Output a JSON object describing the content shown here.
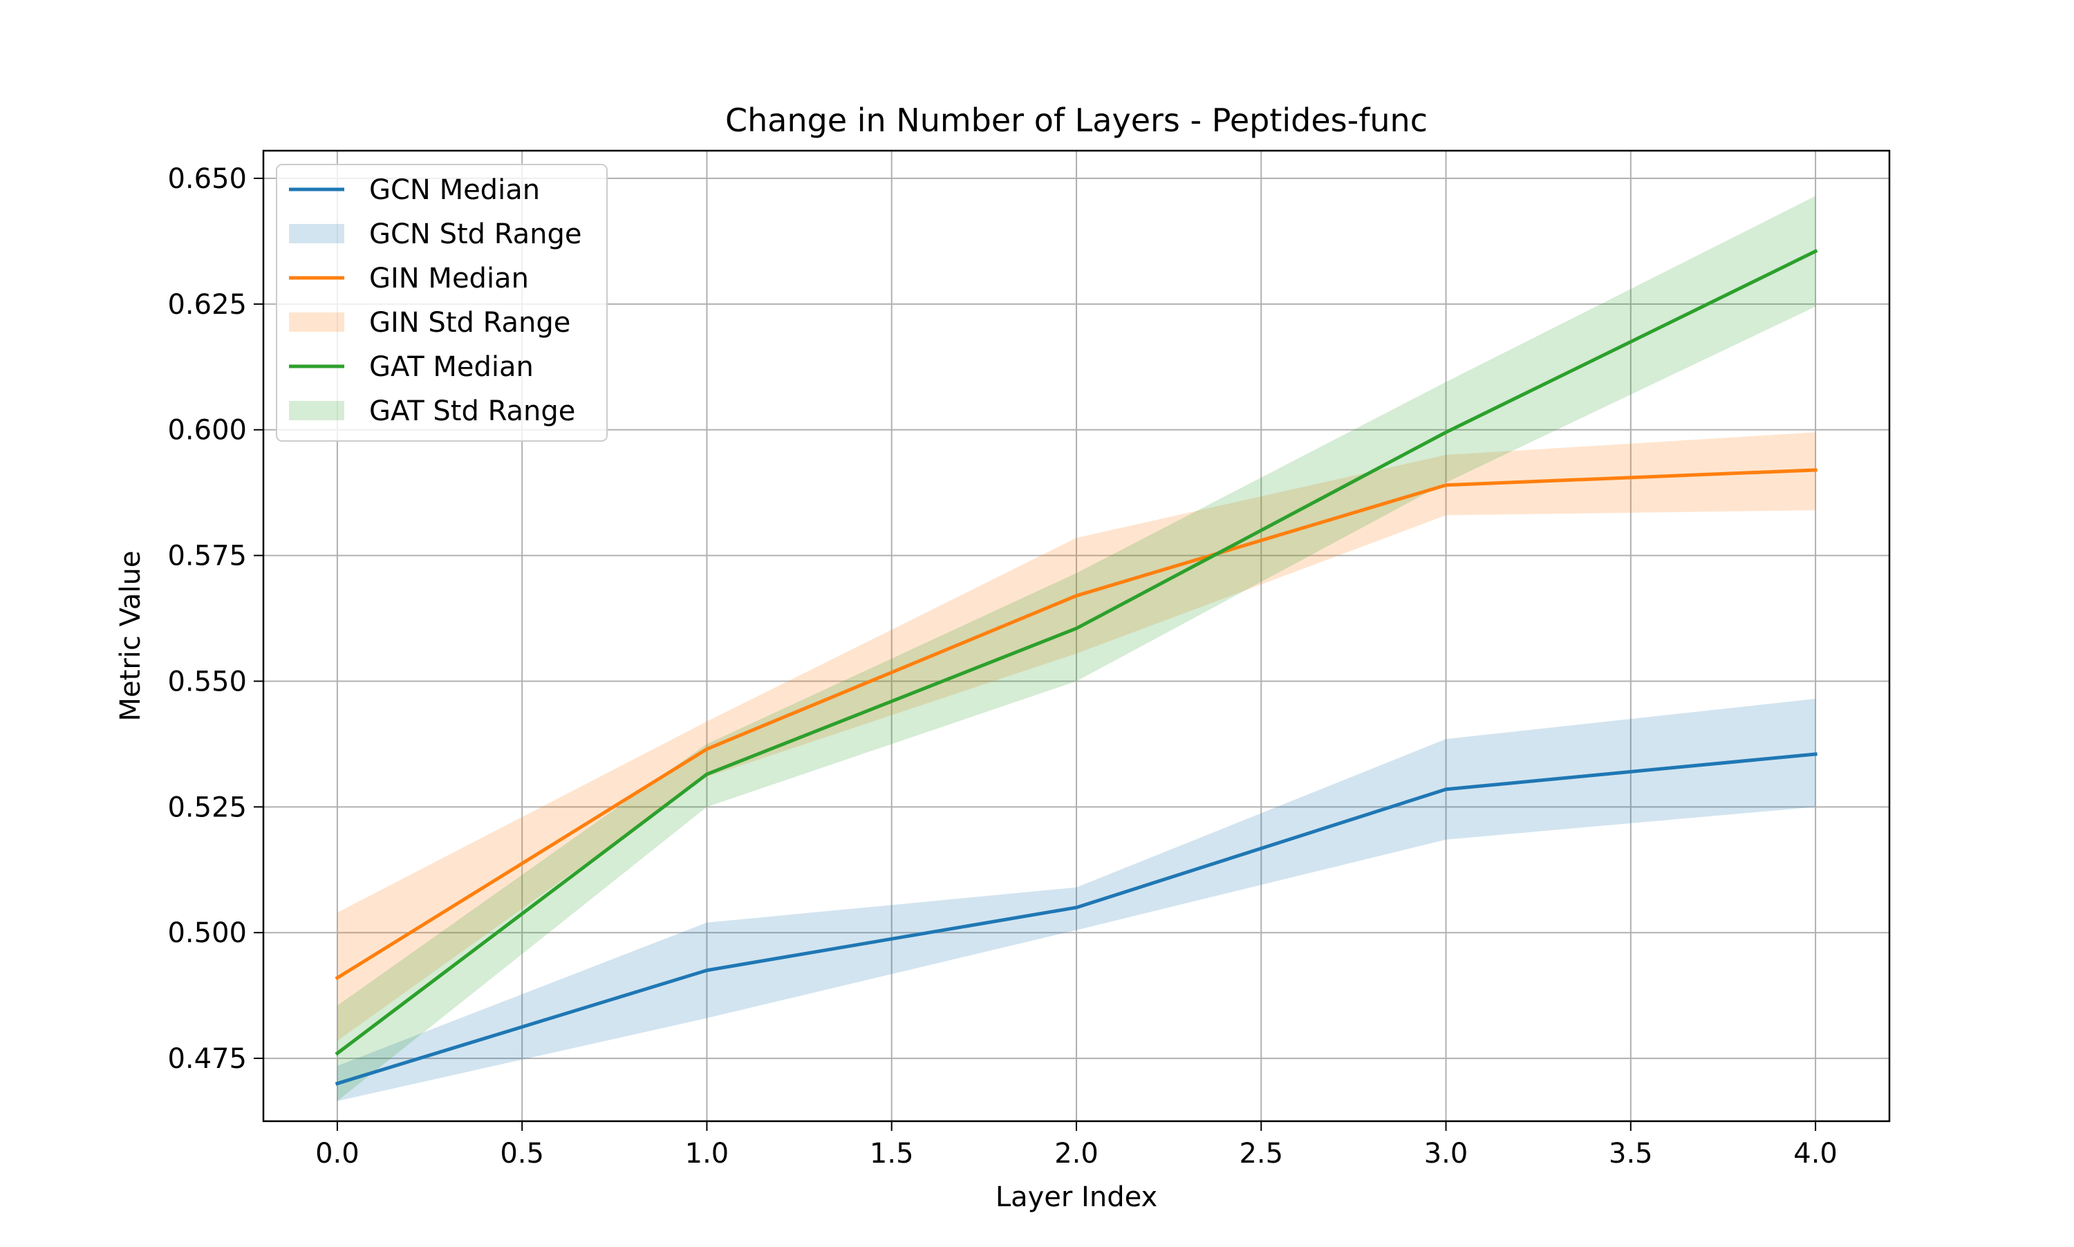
{
  "chart_data": {
    "type": "line",
    "title": "Change in Number of Layers - Peptides-func",
    "xlabel": "Layer Index",
    "ylabel": "Metric Value",
    "xlim": [
      -0.2,
      4.2
    ],
    "ylim": [
      0.4625,
      0.6555
    ],
    "xticks": [
      "0.0",
      "0.5",
      "1.0",
      "1.5",
      "2.0",
      "2.5",
      "3.0",
      "3.5",
      "4.0"
    ],
    "yticks": [
      "0.475",
      "0.500",
      "0.525",
      "0.550",
      "0.575",
      "0.600",
      "0.625",
      "0.650"
    ],
    "grid": true,
    "legend_position": "upper-left",
    "x": [
      0,
      1,
      2,
      3,
      4
    ],
    "series": [
      {
        "name": "GCN Median",
        "band_name": "GCN Std Range",
        "color": "#1f77b4",
        "values": [
          0.47,
          0.4925,
          0.505,
          0.5285,
          0.5355
        ],
        "lower": [
          0.4665,
          0.483,
          0.5005,
          0.5185,
          0.525
        ],
        "upper": [
          0.4735,
          0.502,
          0.509,
          0.5385,
          0.5465
        ]
      },
      {
        "name": "GIN Median",
        "band_name": "GIN Std Range",
        "color": "#ff7f0e",
        "values": [
          0.491,
          0.5365,
          0.567,
          0.589,
          0.592
        ],
        "lower": [
          0.4785,
          0.531,
          0.5555,
          0.583,
          0.584
        ],
        "upper": [
          0.504,
          0.542,
          0.5785,
          0.595,
          0.5995
        ]
      },
      {
        "name": "GAT Median",
        "band_name": "GAT Std Range",
        "color": "#2ca02c",
        "values": [
          0.476,
          0.5315,
          0.5605,
          0.5995,
          0.6355
        ],
        "lower": [
          0.4665,
          0.525,
          0.55,
          0.5895,
          0.6245
        ],
        "upper": [
          0.4855,
          0.5375,
          0.5715,
          0.6095,
          0.6465
        ]
      }
    ]
  }
}
